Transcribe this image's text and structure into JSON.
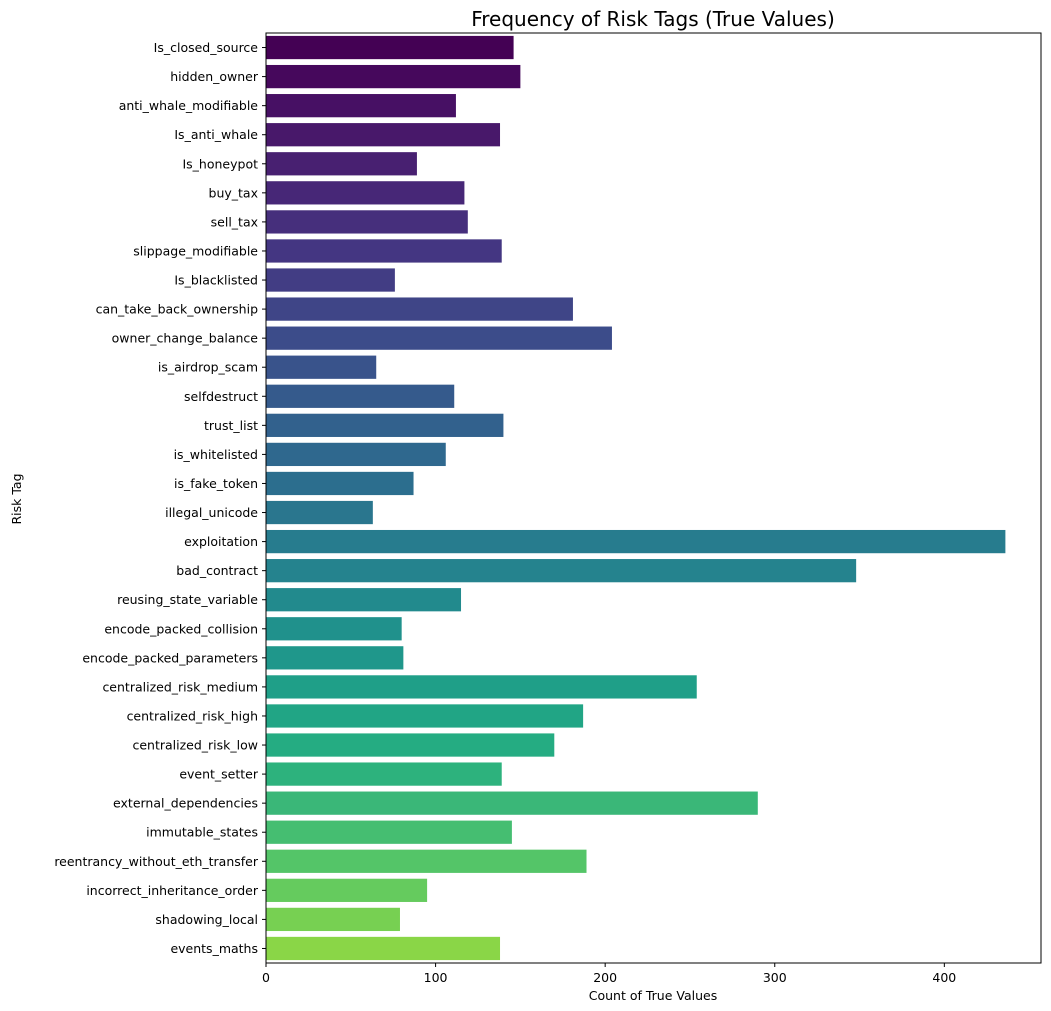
{
  "chart_data": {
    "type": "bar",
    "orientation": "horizontal",
    "title": "Frequency of Risk Tags (True Values)",
    "xlabel": "Count of True Values",
    "ylabel": "Risk Tag",
    "xlim": [
      0,
      457
    ],
    "xticks": [
      0,
      100,
      200,
      300,
      400
    ],
    "grid": false,
    "colormap": "viridis",
    "categories": [
      "Is_closed_source",
      "hidden_owner",
      "anti_whale_modifiable",
      "Is_anti_whale",
      "Is_honeypot",
      "buy_tax",
      "sell_tax",
      "slippage_modifiable",
      "Is_blacklisted",
      "can_take_back_ownership",
      "owner_change_balance",
      "is_airdrop_scam",
      "selfdestruct",
      "trust_list",
      "is_whitelisted",
      "is_fake_token",
      "illegal_unicode",
      "exploitation",
      "bad_contract",
      "reusing_state_variable",
      "encode_packed_collision",
      "encode_packed_parameters",
      "centralized_risk_medium",
      "centralized_risk_high",
      "centralized_risk_low",
      "event_setter",
      "external_dependencies",
      "immutable_states",
      "reentrancy_without_eth_transfer",
      "incorrect_inheritance_order",
      "shadowing_local",
      "events_maths"
    ],
    "values": [
      146,
      150,
      112,
      138,
      89,
      117,
      119,
      139,
      76,
      181,
      204,
      65,
      111,
      140,
      106,
      87,
      63,
      436,
      348,
      115,
      80,
      81,
      254,
      187,
      170,
      139,
      290,
      145,
      189,
      95,
      79,
      138
    ],
    "colors": [
      "#440154",
      "#46085c",
      "#471064",
      "#48186a",
      "#482071",
      "#472777",
      "#462f7c",
      "#443682",
      "#423d84",
      "#3f4587",
      "#3c4c8a",
      "#39538b",
      "#355a8c",
      "#32618d",
      "#2f688e",
      "#2c6e8e",
      "#2a768e",
      "#277c8e",
      "#25838e",
      "#228a8d",
      "#20918c",
      "#1f978b",
      "#1f9f88",
      "#21a585",
      "#25ac82",
      "#2db27d",
      "#3ab778",
      "#45be71",
      "#54c568",
      "#65cb5e",
      "#77d052",
      "#8ad647"
    ]
  }
}
